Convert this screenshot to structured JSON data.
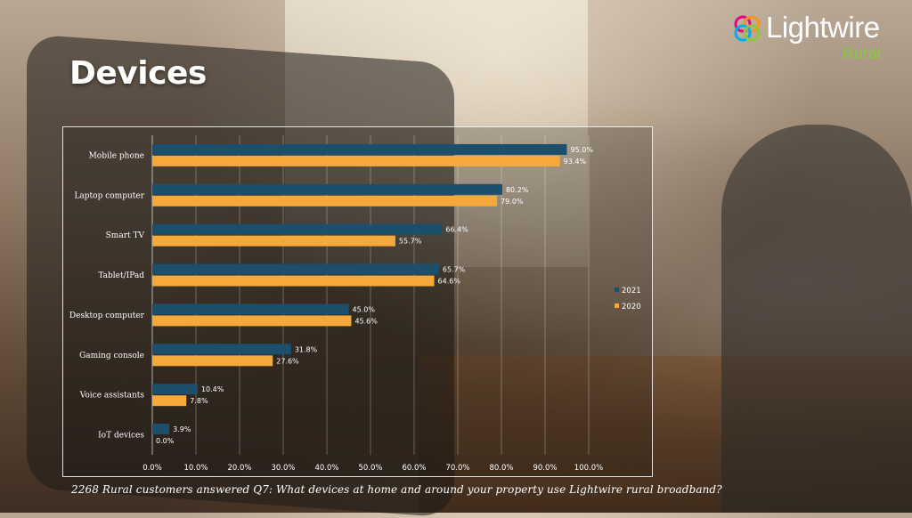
{
  "page": {
    "title": "Devices",
    "caption": "2268 Rural customers answered Q7: What devices at home and around your property use Lightwire rural broadband?"
  },
  "logo": {
    "wordmark": "Lightwire",
    "sub": "Rural",
    "sub_color": "#8dc63f"
  },
  "chart_data": {
    "type": "bar",
    "orientation": "horizontal",
    "categories": [
      "Mobile phone",
      "Laptop computer",
      "Smart TV",
      "Tablet/IPad",
      "Desktop computer",
      "Gaming console",
      "Voice assistants",
      "IoT devices"
    ],
    "series": [
      {
        "name": "2021",
        "color": "#1b4f6b",
        "values": [
          95.0,
          80.2,
          66.4,
          65.7,
          45.0,
          31.8,
          10.4,
          3.9
        ]
      },
      {
        "name": "2020",
        "color": "#f5a93b",
        "values": [
          93.4,
          79.0,
          55.7,
          64.6,
          45.6,
          27.6,
          7.8,
          0.0
        ]
      }
    ],
    "xlim": [
      0,
      100
    ],
    "x_ticks": [
      "0.0%",
      "10.0%",
      "20.0%",
      "30.0%",
      "40.0%",
      "50.0%",
      "60.0%",
      "70.0%",
      "80.0%",
      "90.0%",
      "100.0%"
    ],
    "grid": true,
    "legend_position": "right"
  }
}
